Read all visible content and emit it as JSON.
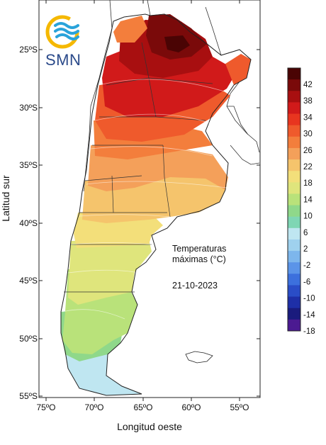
{
  "logo": {
    "text": "SMN",
    "ring_color": "#f5b800",
    "wave_color": "#29a3da"
  },
  "annotation": {
    "line1": "Temperaturas",
    "line2": "máximas (°C)",
    "date": "21-10-2023"
  },
  "axes": {
    "x_title": "Longitud oeste",
    "y_title": "Latitud sur",
    "x_ticks": [
      "75ºO",
      "70ºO",
      "65ºO",
      "60ºO",
      "55ºO"
    ],
    "y_ticks": [
      "25ºS",
      "30ºS",
      "35ºS",
      "40ºS",
      "45ºS",
      "50ºS",
      "55ºS"
    ]
  },
  "legend": {
    "labels": [
      "42",
      "38",
      "34",
      "30",
      "26",
      "22",
      "18",
      "14",
      "10",
      "6",
      "2",
      "-2",
      "-6",
      "-10",
      "-14",
      "-18"
    ],
    "colors": [
      "#4a0404",
      "#7a0a0a",
      "#a80f10",
      "#d11a1a",
      "#e8351f",
      "#ef5a2c",
      "#f37e3c",
      "#f4a05a",
      "#f5c46c",
      "#f3df7a",
      "#dfe57c",
      "#b9e27a",
      "#8fd88a",
      "#7fd6b4",
      "#bfe6f1",
      "#9fd1ee",
      "#7db6ec",
      "#5b94e8",
      "#3c70dd",
      "#2a4dc7",
      "#1e2fa7",
      "#1a1b7d",
      "#4b1a91"
    ]
  },
  "colors": {
    "border": "#222222",
    "ocean": "#ffffff"
  }
}
